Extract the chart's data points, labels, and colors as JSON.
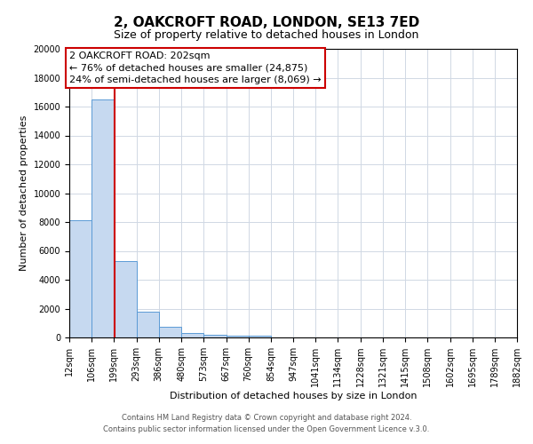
{
  "title": "2, OAKCROFT ROAD, LONDON, SE13 7ED",
  "subtitle": "Size of property relative to detached houses in London",
  "xlabel": "Distribution of detached houses by size in London",
  "ylabel": "Number of detached properties",
  "bin_labels": [
    "12sqm",
    "106sqm",
    "199sqm",
    "293sqm",
    "386sqm",
    "480sqm",
    "573sqm",
    "667sqm",
    "760sqm",
    "854sqm",
    "947sqm",
    "1041sqm",
    "1134sqm",
    "1228sqm",
    "1321sqm",
    "1415sqm",
    "1508sqm",
    "1602sqm",
    "1695sqm",
    "1789sqm",
    "1882sqm"
  ],
  "bar_heights": [
    8100,
    16500,
    5300,
    1800,
    750,
    280,
    200,
    150,
    100,
    0,
    0,
    0,
    0,
    0,
    0,
    0,
    0,
    0,
    0,
    0
  ],
  "bar_color": "#c6d9f0",
  "bar_edge_color": "#5b9bd5",
  "grid_color": "#d0d8e4",
  "vline_x": 202,
  "vline_color": "#cc0000",
  "ylim": [
    0,
    20000
  ],
  "yticks": [
    0,
    2000,
    4000,
    6000,
    8000,
    10000,
    12000,
    14000,
    16000,
    18000,
    20000
  ],
  "annotation_title": "2 OAKCROFT ROAD: 202sqm",
  "annotation_line1": "← 76% of detached houses are smaller (24,875)",
  "annotation_line2": "24% of semi-detached houses are larger (8,069) →",
  "annotation_box_color": "#ffffff",
  "annotation_box_edge": "#cc0000",
  "footer1": "Contains HM Land Registry data © Crown copyright and database right 2024.",
  "footer2": "Contains public sector information licensed under the Open Government Licence v.3.0.",
  "background_color": "#ffffff",
  "title_fontsize": 11,
  "subtitle_fontsize": 9,
  "ylabel_fontsize": 8,
  "xlabel_fontsize": 8,
  "tick_fontsize": 7,
  "annot_fontsize": 8,
  "footer_fontsize": 6
}
